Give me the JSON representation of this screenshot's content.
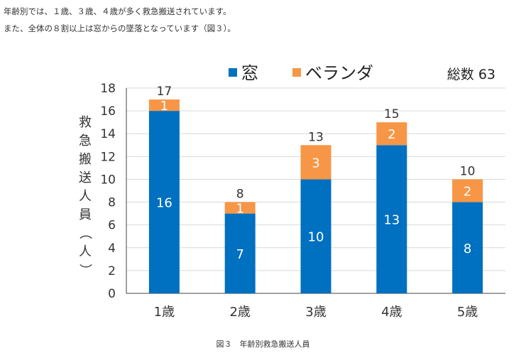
{
  "intro": [
    "年齢別では、１歳、３歳、４歳が多く救急搬送されています。",
    "また、全体の８割以上は窓からの墜落となっています（図３）。"
  ],
  "caption": "図３　年齢別救急搬送人員",
  "chart_data": {
    "type": "bar",
    "stacked": true,
    "categories": [
      "1歳",
      "2歳",
      "3歳",
      "4歳",
      "5歳"
    ],
    "series": [
      {
        "name": "窓",
        "color": "#0070C0",
        "values": [
          16,
          7,
          10,
          13,
          8
        ]
      },
      {
        "name": "ベランダ",
        "color": "#F79646",
        "values": [
          1,
          1,
          3,
          2,
          2
        ]
      }
    ],
    "totals": [
      17,
      8,
      13,
      15,
      10
    ],
    "total_label": "総数 63",
    "ylabel": "救急搬送人員（人）",
    "ylim": [
      0,
      18
    ],
    "yticks": [
      0,
      2,
      4,
      6,
      8,
      10,
      12,
      14,
      16,
      18
    ],
    "grid": true,
    "legend": "top"
  }
}
